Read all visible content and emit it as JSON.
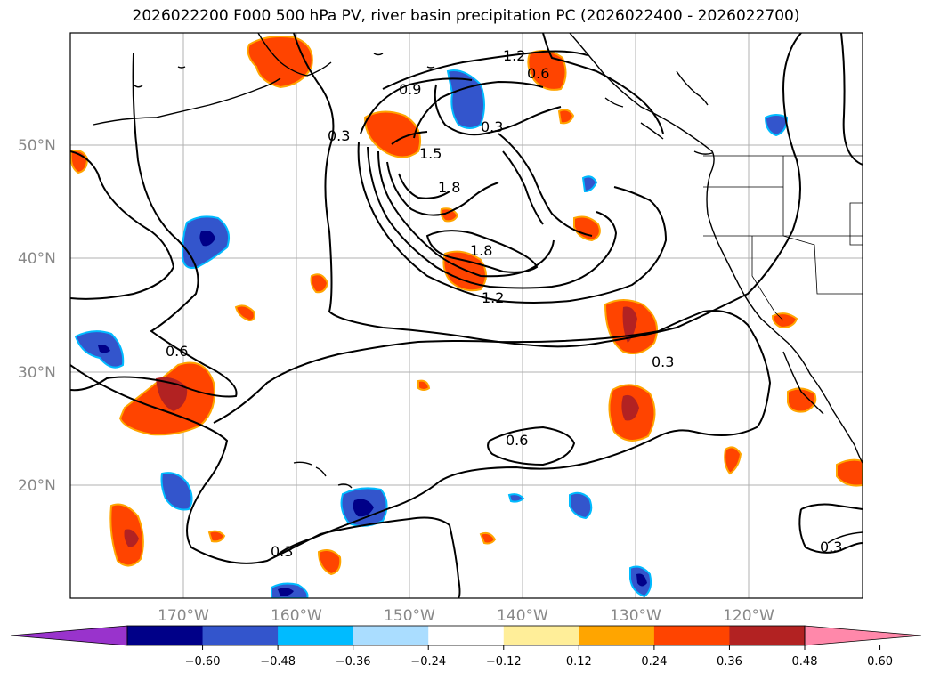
{
  "title": "2026022200 F000 500 hPa PV, river basin precipitation PC (2026022400 - 2026022700)",
  "map": {
    "lon_range": [
      -180,
      -110
    ],
    "lat_range": [
      10,
      60
    ],
    "lat_labels": [
      "50°N",
      "40°N",
      "30°N",
      "20°N"
    ],
    "lon_labels": [
      "170°W",
      "160°W",
      "150°W",
      "140°W",
      "130°W",
      "120°W"
    ],
    "contour_labels": [
      "1.2",
      "0.6",
      "0.9",
      "0.3",
      "1.5",
      "1.8",
      "1.8",
      "1.2",
      "0.3",
      "0.6",
      "0.3",
      "0.3",
      "0.6",
      "0.3"
    ],
    "colors": {
      "ocean_bg": "#ffffff",
      "grid": "#b0b0b0",
      "coast": "#000000",
      "contour": "#000000"
    }
  },
  "colorbar": {
    "colors": [
      "#9933cc",
      "#000088",
      "#3355cc",
      "#00bbff",
      "#aaddff",
      "#ffffff",
      "#ffee99",
      "#ffa500",
      "#ff4400",
      "#b22222",
      "#ff88aa"
    ],
    "tick_labels": [
      "−0.60",
      "−0.48",
      "−0.36",
      "−0.24",
      "−0.12",
      "0.12",
      "0.24",
      "0.36",
      "0.48",
      "0.60"
    ]
  }
}
